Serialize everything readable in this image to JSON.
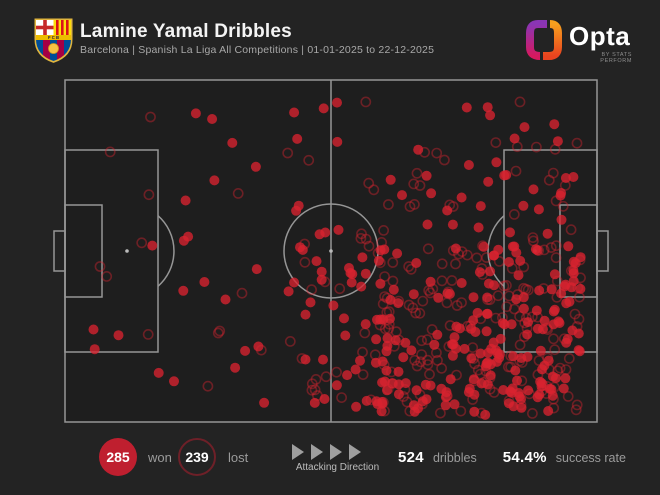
{
  "header": {
    "title": "Lamine Yamal Dribbles",
    "subtitle": "Barcelona | Spanish La Liga All Competitions | 01-01-2025 to 22-12-2025",
    "club_crest": "FC Barcelona crest",
    "brand": {
      "name": "Opta",
      "byline": "BY STATS PERFORM"
    }
  },
  "footer": {
    "won": {
      "value": "285",
      "label": "won"
    },
    "lost": {
      "value": "239",
      "label": "lost"
    },
    "attacking_direction_label": "Attacking Direction",
    "dribbles": {
      "value": "524",
      "label": "dribbles"
    },
    "success_rate": {
      "value": "54.4%",
      "label": "success rate"
    }
  },
  "colors": {
    "background": "#232323",
    "pitch_fill": "#1e1e1e",
    "pitch_lines": "#969696",
    "marker_red": "#d8232f",
    "won_badge": "#bf1f2f",
    "lost_badge_ring": "#6e2028"
  },
  "chart_data": {
    "type": "scatter",
    "title": "Lamine Yamal Dribbles",
    "player": "Lamine Yamal",
    "team": "Barcelona",
    "competition": "Spanish La Liga All Competitions",
    "date_range": "01-01-2025 to 22-12-2025",
    "pitch": {
      "orientation": "horizontal",
      "attacking_direction": "left-to-right",
      "coordinate_units": "percent: x 0=own goal line, 100=attacking goal line; y 0=top touchline, 100=bottom touchline"
    },
    "totals": {
      "dribbles": 524,
      "won": 285,
      "lost": 239,
      "success_rate_pct": 54.4
    },
    "marker": {
      "won": "filled-circle",
      "lost": "outlined-circle",
      "color": "#d8232f"
    },
    "legend_position": "footer",
    "grid": false,
    "seed": 20251222,
    "density_clusters": {
      "won": [
        {
          "x": [
            4,
            44
          ],
          "y": [
            45,
            97
          ],
          "n": 18
        },
        {
          "x": [
            6,
            44
          ],
          "y": [
            4,
            42
          ],
          "n": 7
        },
        {
          "x": [
            44,
            62
          ],
          "y": [
            42,
            97
          ],
          "n": 42
        },
        {
          "x": [
            40,
            62
          ],
          "y": [
            6,
            42
          ],
          "n": 6
        },
        {
          "x": [
            58,
            97
          ],
          "y": [
            48,
            98
          ],
          "n": 176,
          "skew": [
            0.85,
            0.8
          ]
        },
        {
          "x": [
            60,
            97
          ],
          "y": [
            26,
            52
          ],
          "n": 24
        },
        {
          "x": [
            64,
            97
          ],
          "y": [
            3,
            28
          ],
          "n": 12
        }
      ],
      "lost": [
        {
          "x": [
            4,
            44
          ],
          "y": [
            45,
            97
          ],
          "n": 10
        },
        {
          "x": [
            6,
            44
          ],
          "y": [
            4,
            42
          ],
          "n": 5
        },
        {
          "x": [
            44,
            62
          ],
          "y": [
            42,
            97
          ],
          "n": 31
        },
        {
          "x": [
            40,
            62
          ],
          "y": [
            6,
            42
          ],
          "n": 5
        },
        {
          "x": [
            58,
            97
          ],
          "y": [
            48,
            98
          ],
          "n": 158,
          "skew": [
            0.85,
            0.8
          ]
        },
        {
          "x": [
            60,
            97
          ],
          "y": [
            26,
            52
          ],
          "n": 20
        },
        {
          "x": [
            64,
            97
          ],
          "y": [
            3,
            28
          ],
          "n": 10
        }
      ]
    }
  }
}
